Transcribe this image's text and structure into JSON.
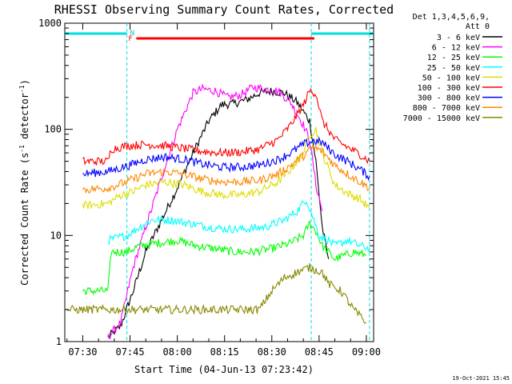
{
  "chart_data": {
    "type": "line",
    "title": "RHESSI Observing Summary Count Rates, Corrected",
    "xlabel": "Start Time (04-Jun-13 07:23:42)",
    "ylabel": "Corrected Count Rate (s⁻¹ detector⁻¹)",
    "ylabel_parts": {
      "main": "Corrected Count Rate (s",
      "exp1": "-1",
      "mid": " detector",
      "exp2": "-1",
      "end": ")"
    },
    "yscale": "log",
    "ylim": [
      1,
      1000
    ],
    "xlim_minutes": [
      -5.7,
      92.3
    ],
    "x_ticks": [
      {
        "m": 0,
        "label": "07:30"
      },
      {
        "m": 15,
        "label": "07:45"
      },
      {
        "m": 30,
        "label": "08:00"
      },
      {
        "m": 45,
        "label": "08:15"
      },
      {
        "m": 60,
        "label": "08:30"
      },
      {
        "m": 75,
        "label": "08:45"
      },
      {
        "m": 90,
        "label": "09:00"
      }
    ],
    "y_ticks": [
      {
        "v": 1,
        "label": "1"
      },
      {
        "v": 10,
        "label": "10"
      },
      {
        "v": 100,
        "label": "100"
      },
      {
        "v": 1000,
        "label": "1000"
      }
    ],
    "legend_header": [
      "Det 1,3,4,5,6,9,",
      "Att 0"
    ],
    "legend_position": "right",
    "annotations": {
      "night": "N",
      "flare": "F",
      "night_intervals_minutes": [
        [
          -5.7,
          14
        ],
        [
          72.5,
          92.3
        ]
      ],
      "flare_interval_minutes": [
        17,
        73.5
      ],
      "vertical_markers_minutes": [
        14,
        72.5,
        91
      ]
    },
    "footer": "19-Oct-2021 15:45",
    "series": [
      {
        "name": "3 - 6 keV",
        "color": "#000000",
        "points": [
          [
            8,
            1.1
          ],
          [
            12,
            1.4
          ],
          [
            16,
            3
          ],
          [
            20,
            7
          ],
          [
            25,
            14
          ],
          [
            30,
            28
          ],
          [
            35,
            60
          ],
          [
            40,
            120
          ],
          [
            44,
            170
          ],
          [
            48,
            175
          ],
          [
            52,
            190
          ],
          [
            56,
            220
          ],
          [
            60,
            230
          ],
          [
            64,
            220
          ],
          [
            68,
            180
          ],
          [
            72,
            120
          ],
          [
            74,
            50
          ],
          [
            76,
            12
          ],
          [
            78,
            6
          ]
        ]
      },
      {
        "name": "6 - 12 keV",
        "color": "#ff00ff",
        "points": [
          [
            8,
            1.1
          ],
          [
            12,
            1.5
          ],
          [
            16,
            5
          ],
          [
            20,
            12
          ],
          [
            25,
            35
          ],
          [
            30,
            100
          ],
          [
            35,
            220
          ],
          [
            38,
            240
          ],
          [
            42,
            230
          ],
          [
            46,
            200
          ],
          [
            50,
            210
          ],
          [
            54,
            250
          ],
          [
            58,
            240
          ],
          [
            62,
            230
          ],
          [
            66,
            180
          ],
          [
            70,
            110
          ],
          [
            72,
            80
          ],
          [
            74,
            30
          ],
          [
            76,
            17
          ]
        ]
      },
      {
        "name": "12 - 25 keV",
        "color": "#00ff00",
        "points": [
          [
            0,
            3
          ],
          [
            8,
            3
          ],
          [
            9,
            7
          ],
          [
            14,
            7
          ],
          [
            18,
            8
          ],
          [
            24,
            8.5
          ],
          [
            30,
            9
          ],
          [
            36,
            8
          ],
          [
            42,
            7.5
          ],
          [
            48,
            7
          ],
          [
            54,
            7
          ],
          [
            60,
            7.5
          ],
          [
            66,
            8.5
          ],
          [
            70,
            10
          ],
          [
            72,
            13
          ],
          [
            74,
            11
          ],
          [
            76,
            8
          ],
          [
            80,
            6
          ],
          [
            86,
            7
          ],
          [
            90,
            6.5
          ]
        ]
      },
      {
        "name": "25 - 50 keV",
        "color": "#00ffff",
        "points": [
          [
            8,
            9
          ],
          [
            14,
            10
          ],
          [
            18,
            12
          ],
          [
            22,
            14
          ],
          [
            28,
            14
          ],
          [
            34,
            13
          ],
          [
            40,
            12
          ],
          [
            46,
            11.5
          ],
          [
            52,
            11.5
          ],
          [
            58,
            12
          ],
          [
            64,
            14
          ],
          [
            68,
            17
          ],
          [
            71,
            22
          ],
          [
            73,
            15
          ],
          [
            75,
            10
          ],
          [
            78,
            9
          ],
          [
            80,
            8
          ],
          [
            84,
            9
          ],
          [
            88,
            8
          ],
          [
            91,
            7.5
          ]
        ]
      },
      {
        "name": "50 - 100 keV",
        "color": "#dddd00",
        "points": [
          [
            0,
            19
          ],
          [
            8,
            20
          ],
          [
            12,
            24
          ],
          [
            16,
            26
          ],
          [
            20,
            30
          ],
          [
            26,
            32
          ],
          [
            32,
            30
          ],
          [
            38,
            26
          ],
          [
            44,
            24
          ],
          [
            50,
            24
          ],
          [
            56,
            26
          ],
          [
            62,
            32
          ],
          [
            66,
            42
          ],
          [
            70,
            60
          ],
          [
            72,
            90
          ],
          [
            74,
            100
          ],
          [
            76,
            60
          ],
          [
            80,
            30
          ],
          [
            84,
            25
          ],
          [
            88,
            22
          ],
          [
            91,
            18
          ]
        ]
      },
      {
        "name": "100 - 300 keV",
        "color": "#ff0000",
        "points": [
          [
            0,
            50
          ],
          [
            8,
            50
          ],
          [
            9,
            65
          ],
          [
            14,
            70
          ],
          [
            20,
            72
          ],
          [
            26,
            70
          ],
          [
            32,
            66
          ],
          [
            38,
            62
          ],
          [
            44,
            60
          ],
          [
            50,
            61
          ],
          [
            56,
            65
          ],
          [
            62,
            80
          ],
          [
            66,
            110
          ],
          [
            70,
            170
          ],
          [
            72,
            230
          ],
          [
            74,
            220
          ],
          [
            76,
            120
          ],
          [
            80,
            80
          ],
          [
            84,
            68
          ],
          [
            88,
            58
          ],
          [
            91,
            50
          ]
        ]
      },
      {
        "name": "300 - 800 keV",
        "color": "#0000ff",
        "points": [
          [
            0,
            38
          ],
          [
            8,
            40
          ],
          [
            14,
            45
          ],
          [
            20,
            52
          ],
          [
            26,
            55
          ],
          [
            32,
            52
          ],
          [
            38,
            47
          ],
          [
            44,
            44
          ],
          [
            50,
            44
          ],
          [
            56,
            46
          ],
          [
            62,
            52
          ],
          [
            66,
            60
          ],
          [
            70,
            72
          ],
          [
            73,
            78
          ],
          [
            76,
            75
          ],
          [
            80,
            58
          ],
          [
            84,
            50
          ],
          [
            88,
            42
          ],
          [
            91,
            36
          ]
        ]
      },
      {
        "name": "800 - 7000 keV",
        "color": "#ff8800",
        "points": [
          [
            0,
            27
          ],
          [
            8,
            28
          ],
          [
            14,
            32
          ],
          [
            20,
            38
          ],
          [
            26,
            40
          ],
          [
            32,
            38
          ],
          [
            38,
            34
          ],
          [
            44,
            32
          ],
          [
            50,
            32
          ],
          [
            56,
            33
          ],
          [
            62,
            38
          ],
          [
            66,
            46
          ],
          [
            70,
            56
          ],
          [
            73,
            68
          ],
          [
            76,
            62
          ],
          [
            80,
            46
          ],
          [
            84,
            38
          ],
          [
            88,
            32
          ],
          [
            91,
            28
          ]
        ]
      },
      {
        "name": "7000 - 15000 keV",
        "color": "#888800",
        "points": [
          [
            -5,
            2
          ],
          [
            10,
            2
          ],
          [
            20,
            2
          ],
          [
            30,
            2
          ],
          [
            40,
            2
          ],
          [
            50,
            2
          ],
          [
            56,
            2
          ],
          [
            60,
            3
          ],
          [
            64,
            4
          ],
          [
            68,
            4.5
          ],
          [
            72,
            5
          ],
          [
            76,
            4.5
          ],
          [
            78,
            3.5
          ],
          [
            82,
            3
          ],
          [
            86,
            2
          ],
          [
            90,
            1.5
          ]
        ]
      }
    ]
  }
}
